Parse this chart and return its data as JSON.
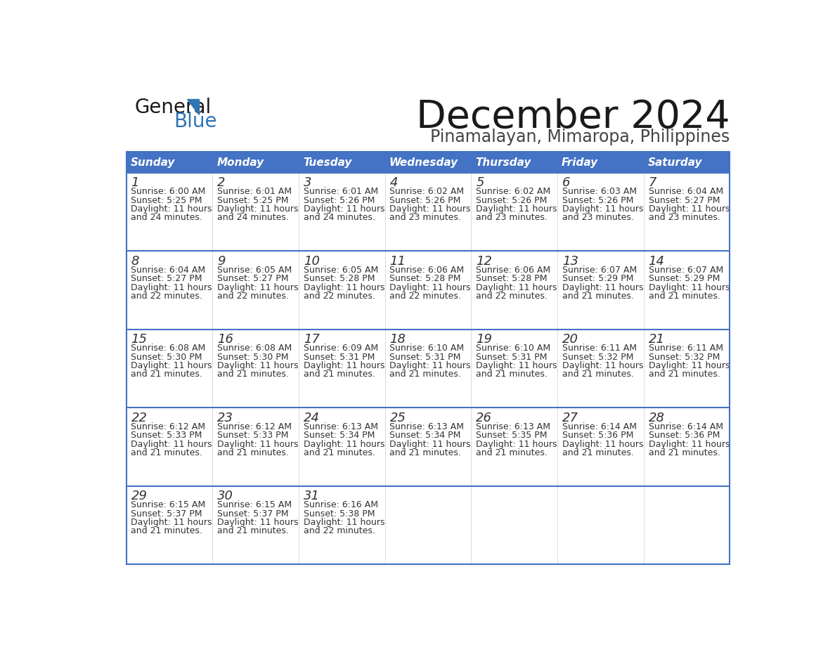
{
  "title": "December 2024",
  "subtitle": "Pinamalayan, Mimaropa, Philippines",
  "days_of_week": [
    "Sunday",
    "Monday",
    "Tuesday",
    "Wednesday",
    "Thursday",
    "Friday",
    "Saturday"
  ],
  "header_bg": "#4472C4",
  "header_text_color": "#FFFFFF",
  "cell_bg": "#FFFFFF",
  "border_color": "#4472C4",
  "text_color": "#333333",
  "calendar_data": [
    [
      {
        "day": 1,
        "sunrise": "6:00 AM",
        "sunset": "5:25 PM",
        "daylight_hrs": 11,
        "daylight_min": 24
      },
      {
        "day": 2,
        "sunrise": "6:01 AM",
        "sunset": "5:25 PM",
        "daylight_hrs": 11,
        "daylight_min": 24
      },
      {
        "day": 3,
        "sunrise": "6:01 AM",
        "sunset": "5:26 PM",
        "daylight_hrs": 11,
        "daylight_min": 24
      },
      {
        "day": 4,
        "sunrise": "6:02 AM",
        "sunset": "5:26 PM",
        "daylight_hrs": 11,
        "daylight_min": 23
      },
      {
        "day": 5,
        "sunrise": "6:02 AM",
        "sunset": "5:26 PM",
        "daylight_hrs": 11,
        "daylight_min": 23
      },
      {
        "day": 6,
        "sunrise": "6:03 AM",
        "sunset": "5:26 PM",
        "daylight_hrs": 11,
        "daylight_min": 23
      },
      {
        "day": 7,
        "sunrise": "6:04 AM",
        "sunset": "5:27 PM",
        "daylight_hrs": 11,
        "daylight_min": 23
      }
    ],
    [
      {
        "day": 8,
        "sunrise": "6:04 AM",
        "sunset": "5:27 PM",
        "daylight_hrs": 11,
        "daylight_min": 22
      },
      {
        "day": 9,
        "sunrise": "6:05 AM",
        "sunset": "5:27 PM",
        "daylight_hrs": 11,
        "daylight_min": 22
      },
      {
        "day": 10,
        "sunrise": "6:05 AM",
        "sunset": "5:28 PM",
        "daylight_hrs": 11,
        "daylight_min": 22
      },
      {
        "day": 11,
        "sunrise": "6:06 AM",
        "sunset": "5:28 PM",
        "daylight_hrs": 11,
        "daylight_min": 22
      },
      {
        "day": 12,
        "sunrise": "6:06 AM",
        "sunset": "5:28 PM",
        "daylight_hrs": 11,
        "daylight_min": 22
      },
      {
        "day": 13,
        "sunrise": "6:07 AM",
        "sunset": "5:29 PM",
        "daylight_hrs": 11,
        "daylight_min": 21
      },
      {
        "day": 14,
        "sunrise": "6:07 AM",
        "sunset": "5:29 PM",
        "daylight_hrs": 11,
        "daylight_min": 21
      }
    ],
    [
      {
        "day": 15,
        "sunrise": "6:08 AM",
        "sunset": "5:30 PM",
        "daylight_hrs": 11,
        "daylight_min": 21
      },
      {
        "day": 16,
        "sunrise": "6:08 AM",
        "sunset": "5:30 PM",
        "daylight_hrs": 11,
        "daylight_min": 21
      },
      {
        "day": 17,
        "sunrise": "6:09 AM",
        "sunset": "5:31 PM",
        "daylight_hrs": 11,
        "daylight_min": 21
      },
      {
        "day": 18,
        "sunrise": "6:10 AM",
        "sunset": "5:31 PM",
        "daylight_hrs": 11,
        "daylight_min": 21
      },
      {
        "day": 19,
        "sunrise": "6:10 AM",
        "sunset": "5:31 PM",
        "daylight_hrs": 11,
        "daylight_min": 21
      },
      {
        "day": 20,
        "sunrise": "6:11 AM",
        "sunset": "5:32 PM",
        "daylight_hrs": 11,
        "daylight_min": 21
      },
      {
        "day": 21,
        "sunrise": "6:11 AM",
        "sunset": "5:32 PM",
        "daylight_hrs": 11,
        "daylight_min": 21
      }
    ],
    [
      {
        "day": 22,
        "sunrise": "6:12 AM",
        "sunset": "5:33 PM",
        "daylight_hrs": 11,
        "daylight_min": 21
      },
      {
        "day": 23,
        "sunrise": "6:12 AM",
        "sunset": "5:33 PM",
        "daylight_hrs": 11,
        "daylight_min": 21
      },
      {
        "day": 24,
        "sunrise": "6:13 AM",
        "sunset": "5:34 PM",
        "daylight_hrs": 11,
        "daylight_min": 21
      },
      {
        "day": 25,
        "sunrise": "6:13 AM",
        "sunset": "5:34 PM",
        "daylight_hrs": 11,
        "daylight_min": 21
      },
      {
        "day": 26,
        "sunrise": "6:13 AM",
        "sunset": "5:35 PM",
        "daylight_hrs": 11,
        "daylight_min": 21
      },
      {
        "day": 27,
        "sunrise": "6:14 AM",
        "sunset": "5:36 PM",
        "daylight_hrs": 11,
        "daylight_min": 21
      },
      {
        "day": 28,
        "sunrise": "6:14 AM",
        "sunset": "5:36 PM",
        "daylight_hrs": 11,
        "daylight_min": 21
      }
    ],
    [
      {
        "day": 29,
        "sunrise": "6:15 AM",
        "sunset": "5:37 PM",
        "daylight_hrs": 11,
        "daylight_min": 21
      },
      {
        "day": 30,
        "sunrise": "6:15 AM",
        "sunset": "5:37 PM",
        "daylight_hrs": 11,
        "daylight_min": 21
      },
      {
        "day": 31,
        "sunrise": "6:16 AM",
        "sunset": "5:38 PM",
        "daylight_hrs": 11,
        "daylight_min": 22
      },
      null,
      null,
      null,
      null
    ]
  ],
  "logo_color_general": "#1a1a1a",
  "logo_color_blue": "#2E75B6",
  "logo_triangle_color": "#2E75B6"
}
